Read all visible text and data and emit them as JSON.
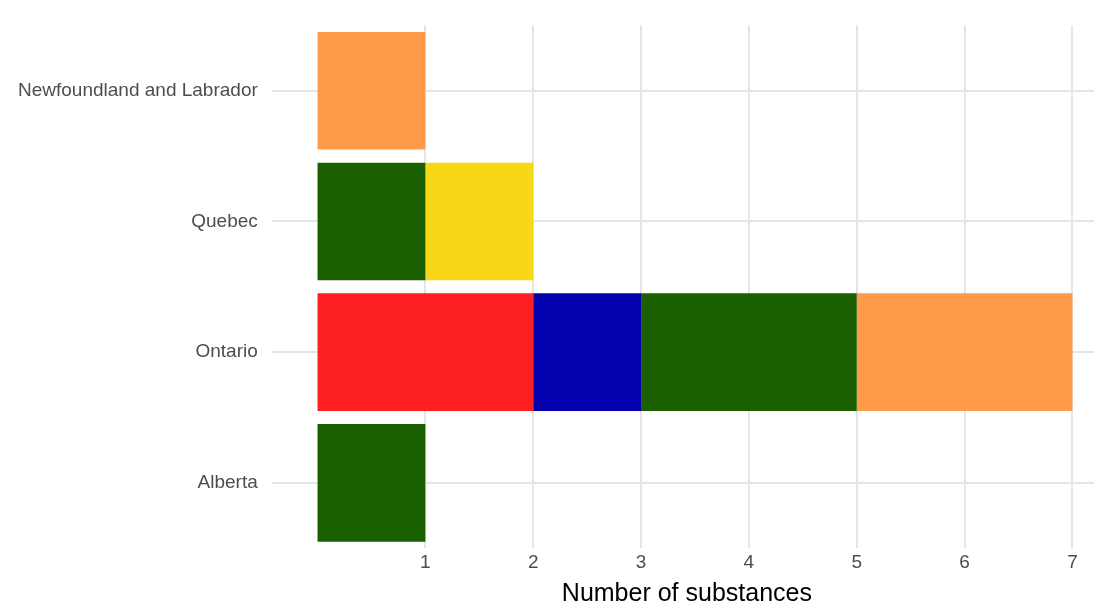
{
  "chart_data": {
    "type": "bar",
    "orientation": "horizontal",
    "stacked": true,
    "xlabel": "Number of substances",
    "categories": [
      "Newfoundland and Labrador",
      "Quebec",
      "Ontario",
      "Alberta"
    ],
    "series": [
      {
        "color": "#fe1f22",
        "values": [
          null,
          null,
          2,
          null
        ]
      },
      {
        "color": "#0300ad",
        "values": [
          null,
          null,
          1,
          null
        ]
      },
      {
        "color": "#1a6000",
        "values": [
          null,
          1,
          2,
          1
        ]
      },
      {
        "color": "#f8d816",
        "values": [
          null,
          1,
          null,
          null
        ]
      },
      {
        "color": "#fe9a48",
        "values": [
          1,
          null,
          2,
          null
        ]
      }
    ],
    "xlim": [
      -0.35,
      7.2
    ],
    "xticks": [
      1,
      2,
      3,
      4,
      5,
      6,
      7
    ],
    "grid": true,
    "legend": false
  }
}
